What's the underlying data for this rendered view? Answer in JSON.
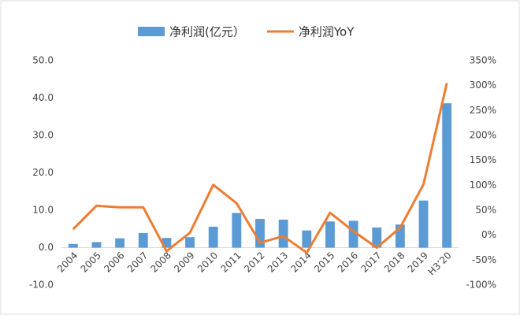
{
  "chart_data": {
    "type": "bar-line",
    "categories": [
      "2004",
      "2005",
      "2006",
      "2007",
      "2008",
      "2009",
      "2010",
      "2011",
      "2012",
      "2013",
      "2014",
      "2015",
      "2016",
      "2017",
      "2018",
      "2019",
      "H3’20"
    ],
    "series": [
      {
        "name": "净利润(亿元）",
        "type": "bar",
        "color": "#5b9bd5",
        "values": [
          1.0,
          1.5,
          2.5,
          3.9,
          2.6,
          2.8,
          5.6,
          9.3,
          7.7,
          7.5,
          4.6,
          7.0,
          7.2,
          5.4,
          6.2,
          12.6,
          38.6
        ]
      },
      {
        "name": "净利润YoY",
        "type": "line",
        "axis": "y2",
        "color": "#ed7d31",
        "values": [
          12,
          59,
          56,
          56,
          -32,
          5,
          101,
          64,
          -15,
          -2,
          -35,
          45,
          8,
          -25,
          15,
          102,
          305
        ]
      }
    ],
    "ylim": [
      -10,
      50
    ],
    "yticks": [
      {
        "value": -10,
        "label": "-10.0"
      },
      {
        "value": 0,
        "label": "0.0"
      },
      {
        "value": 10,
        "label": "10.0"
      },
      {
        "value": 20,
        "label": "20.0"
      },
      {
        "value": 30,
        "label": "30.0"
      },
      {
        "value": 40,
        "label": "40.0"
      },
      {
        "value": 50,
        "label": "50.0"
      }
    ],
    "y2lim": [
      -100,
      350
    ],
    "y2ticks": [
      {
        "value": -100,
        "label": "-100%"
      },
      {
        "value": -50,
        "label": "-50%"
      },
      {
        "value": 0,
        "label": "0%"
      },
      {
        "value": 50,
        "label": "50%"
      },
      {
        "value": 100,
        "label": "100%"
      },
      {
        "value": 150,
        "label": "150%"
      },
      {
        "value": 200,
        "label": "200%"
      },
      {
        "value": 250,
        "label": "250%"
      },
      {
        "value": 300,
        "label": "300%"
      },
      {
        "value": 350,
        "label": "350%"
      }
    ],
    "legend": "top"
  }
}
